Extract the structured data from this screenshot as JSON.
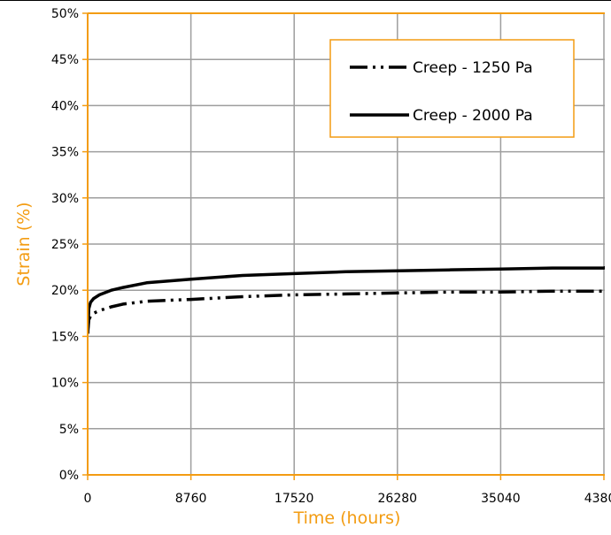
{
  "chart_data": {
    "type": "line",
    "title": "",
    "xlabel": "Time (hours)",
    "ylabel": "Strain (%)",
    "xlim": [
      0,
      43800
    ],
    "ylim": [
      0,
      50
    ],
    "x_ticks": [
      0,
      8760,
      17520,
      26280,
      35040,
      43800
    ],
    "x_tick_labels": [
      "0",
      "8760",
      "17520",
      "26280",
      "35040",
      "43800"
    ],
    "y_ticks": [
      0,
      5,
      10,
      15,
      20,
      25,
      30,
      35,
      40,
      45,
      50
    ],
    "y_tick_labels": [
      "0%",
      "5%",
      "10%",
      "15%",
      "20%",
      "25%",
      "30%",
      "35%",
      "40%",
      "45%",
      "50%"
    ],
    "grid": true,
    "legend_position": "top-right",
    "colors": {
      "axis": "#F39C12",
      "grid": "#9E9E9E",
      "series": "#000000"
    },
    "series": [
      {
        "name": "Creep - 1250 Pa",
        "style": "dash-dot-dot",
        "x": [
          0,
          100,
          250,
          500,
          1000,
          2000,
          3000,
          5000,
          8760,
          13140,
          17520,
          21900,
          26280,
          30660,
          35040,
          39420,
          43800,
          44000
        ],
        "values": [
          15.3,
          16.8,
          17.2,
          17.5,
          17.8,
          18.2,
          18.5,
          18.8,
          19.0,
          19.3,
          19.5,
          19.6,
          19.7,
          19.8,
          19.8,
          19.9,
          19.9,
          19.9
        ]
      },
      {
        "name": "Creep - 2000 Pa",
        "style": "solid",
        "x": [
          0,
          100,
          250,
          500,
          1000,
          2000,
          3000,
          5000,
          8760,
          13140,
          17520,
          21900,
          26280,
          30660,
          35040,
          39420,
          43800,
          44000
        ],
        "values": [
          15.3,
          18.0,
          18.7,
          19.1,
          19.5,
          20.0,
          20.3,
          20.8,
          21.2,
          21.6,
          21.8,
          22.0,
          22.1,
          22.2,
          22.3,
          22.4,
          22.4,
          22.5
        ]
      }
    ]
  }
}
